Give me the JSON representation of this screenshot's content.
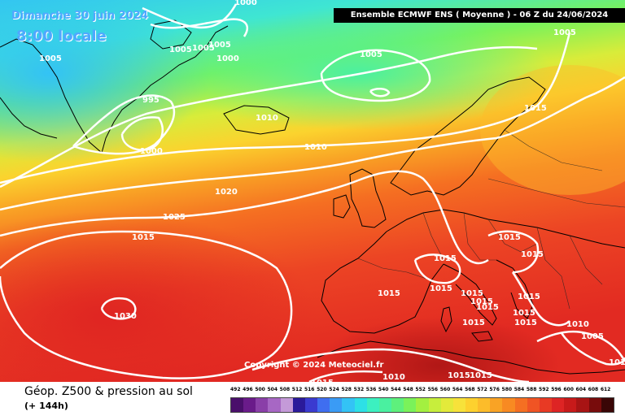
{
  "header": {
    "date": "Dimanche 30 juin 2024",
    "local_time": "8:00 locale",
    "model_run": "Ensemble ECMWF ENS  ( Moyenne )  -  06 Z du 24/06/2024"
  },
  "copyright": "Copyright © 2024 Meteociel.fr",
  "footer": {
    "product": "Géop. Z500 & pression au sol",
    "lead_time": "(+ 144h)"
  },
  "scale": {
    "labels": [
      "492",
      "496",
      "500",
      "504",
      "508",
      "512",
      "516",
      "520",
      "524",
      "528",
      "532",
      "536",
      "540",
      "544",
      "548",
      "552",
      "556",
      "560",
      "564",
      "568",
      "572",
      "576",
      "580",
      "584",
      "588",
      "592",
      "596",
      "600",
      "604",
      "608",
      "612"
    ],
    "colors": [
      "#4a0f6b",
      "#6a1b8a",
      "#8a3fa8",
      "#a767c4",
      "#c49ad8",
      "#2a1a9a",
      "#3a3ad0",
      "#3f6ef0",
      "#3a9bf5",
      "#33c3f5",
      "#2de0e6",
      "#3cf0c0",
      "#4af0a0",
      "#5ef07c",
      "#7af25a",
      "#a3f040",
      "#c7ee3c",
      "#e3ea3a",
      "#f7e23a",
      "#fdd12e",
      "#fcbc2a",
      "#f9a325",
      "#f88a22",
      "#f56f22",
      "#f05424",
      "#e83a24",
      "#de2424",
      "#c81a1a",
      "#a81414",
      "#780c0c",
      "#3a0606"
    ]
  },
  "isobar_labels": [
    "1000",
    "1005",
    "1005",
    "1005",
    "1005",
    "1000",
    "995",
    "1000",
    "1005",
    "1010",
    "1010",
    "1005",
    "1015",
    "1020",
    "1025",
    "1015",
    "1030",
    "1015",
    "1015",
    "1015",
    "1015",
    "1015",
    "1015",
    "1015",
    "1015",
    "1015",
    "1015",
    "1015",
    "1015",
    "1010",
    "1010",
    "1005",
    "1015",
    "1015",
    "1010",
    "1015"
  ]
}
